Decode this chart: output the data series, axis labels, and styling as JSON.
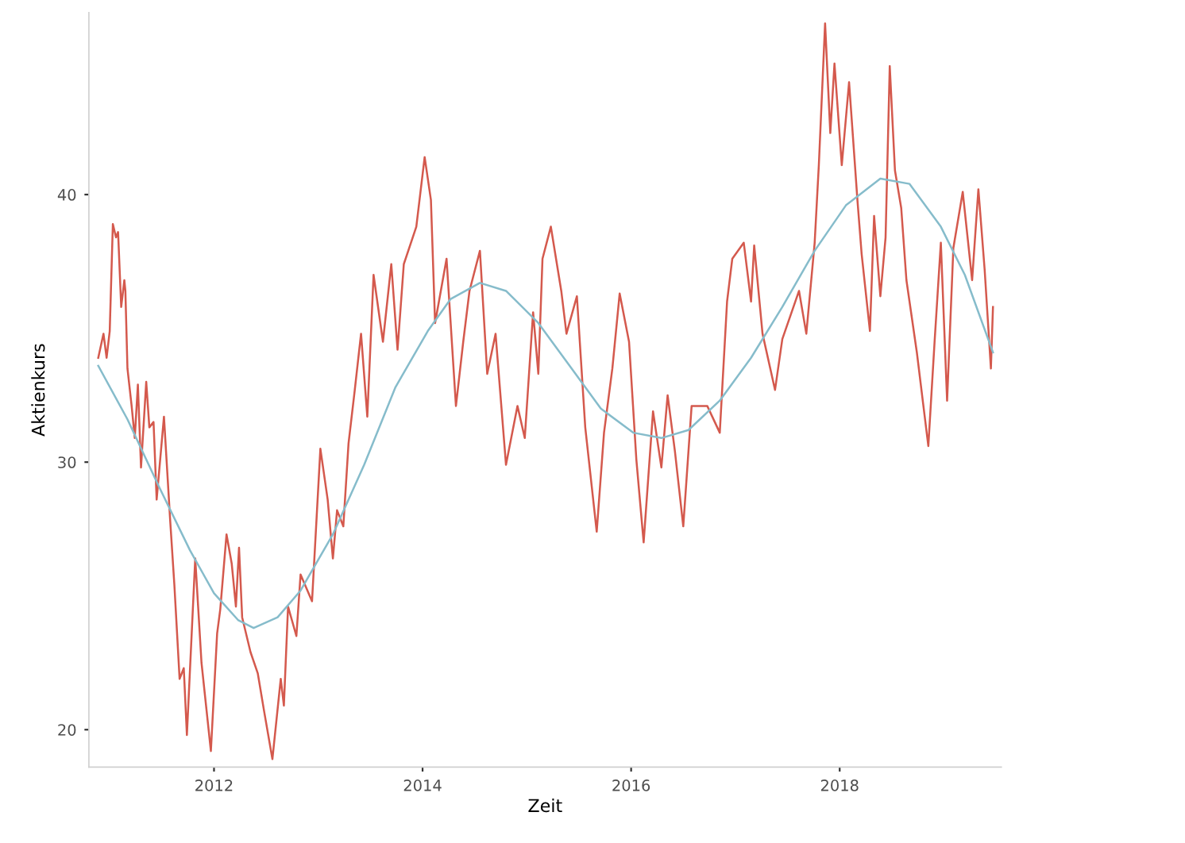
{
  "chart_data": {
    "type": "line",
    "xlabel": "Zeit",
    "ylabel": "Aktienkurs",
    "xlim": [
      2010.8,
      2019.55
    ],
    "xticks": [
      2012,
      2014,
      2016,
      2018
    ],
    "ylim": [
      18.6,
      46.8
    ],
    "yticks": [
      20,
      30,
      40
    ],
    "grid": false,
    "series": [
      {
        "color": "#d4594d",
        "x": [
          2010.89,
          2010.94,
          2010.97,
          2011.0,
          2011.03,
          2011.06,
          2011.08,
          2011.11,
          2011.14,
          2011.15,
          2011.17,
          2011.21,
          2011.24,
          2011.27,
          2011.3,
          2011.35,
          2011.38,
          2011.42,
          2011.45,
          2011.52,
          2011.58,
          2011.62,
          2011.67,
          2011.71,
          2011.74,
          2011.82,
          2011.88,
          2011.97,
          2012.03,
          2012.06,
          2012.12,
          2012.17,
          2012.21,
          2012.24,
          2012.27,
          2012.35,
          2012.42,
          2012.48,
          2012.56,
          2012.64,
          2012.67,
          2012.71,
          2012.79,
          2012.83,
          2012.94,
          2013.02,
          2013.09,
          2013.14,
          2013.18,
          2013.24,
          2013.29,
          2013.35,
          2013.41,
          2013.47,
          2013.53,
          2013.62,
          2013.7,
          2013.76,
          2013.82,
          2013.94,
          2014.02,
          2014.08,
          2014.12,
          2014.23,
          2014.32,
          2014.39,
          2014.45,
          2014.55,
          2014.62,
          2014.7,
          2014.8,
          2014.91,
          2014.98,
          2015.06,
          2015.11,
          2015.15,
          2015.23,
          2015.33,
          2015.38,
          2015.48,
          2015.56,
          2015.67,
          2015.74,
          2015.82,
          2015.89,
          2015.98,
          2016.05,
          2016.12,
          2016.21,
          2016.29,
          2016.35,
          2016.42,
          2016.5,
          2016.58,
          2016.73,
          2016.85,
          2016.92,
          2016.97,
          2017.08,
          2017.15,
          2017.18,
          2017.26,
          2017.38,
          2017.45,
          2017.61,
          2017.68,
          2017.76,
          2017.8,
          2017.86,
          2017.91,
          2017.95,
          2018.02,
          2018.09,
          2018.17,
          2018.21,
          2018.29,
          2018.33,
          2018.39,
          2018.44,
          2018.48,
          2018.53,
          2018.59,
          2018.64,
          2018.74,
          2018.85,
          2018.91,
          2018.97,
          2019.03,
          2019.09,
          2019.18,
          2019.27,
          2019.33,
          2019.39,
          2019.45,
          2019.47
        ],
        "values": [
          33.9,
          34.8,
          33.9,
          34.9,
          38.9,
          38.4,
          38.6,
          35.8,
          36.8,
          36.4,
          33.5,
          32.1,
          30.9,
          32.9,
          29.8,
          33.0,
          31.3,
          31.5,
          28.6,
          31.7,
          27.8,
          25.4,
          21.9,
          22.3,
          19.8,
          26.4,
          22.5,
          19.2,
          23.6,
          24.5,
          27.3,
          26.2,
          24.6,
          26.8,
          24.2,
          22.9,
          22.1,
          20.7,
          18.9,
          21.9,
          20.9,
          24.6,
          23.5,
          25.8,
          24.8,
          30.5,
          28.6,
          26.4,
          28.2,
          27.6,
          30.7,
          32.7,
          34.8,
          31.7,
          37.0,
          34.5,
          37.4,
          34.2,
          37.4,
          38.8,
          41.4,
          39.8,
          35.2,
          37.6,
          32.1,
          34.5,
          36.4,
          37.9,
          33.3,
          34.8,
          29.9,
          32.1,
          30.9,
          35.6,
          33.3,
          37.6,
          38.8,
          36.4,
          34.8,
          36.2,
          31.3,
          27.4,
          31.1,
          33.5,
          36.3,
          34.5,
          30.1,
          27.0,
          31.9,
          29.8,
          32.5,
          30.4,
          27.6,
          32.1,
          32.1,
          31.1,
          36.0,
          37.6,
          38.2,
          36.0,
          38.1,
          34.8,
          32.7,
          34.6,
          36.4,
          34.8,
          38.2,
          41.1,
          46.4,
          42.3,
          44.9,
          41.1,
          44.2,
          39.8,
          37.8,
          34.9,
          39.2,
          36.2,
          38.4,
          44.8,
          40.9,
          39.5,
          36.8,
          34.1,
          30.6,
          34.5,
          38.2,
          32.3,
          38.0,
          40.1,
          36.8,
          40.2,
          37.2,
          33.5,
          35.8
        ]
      },
      {
        "color": "#86bccb",
        "x": [
          2010.89,
          2011.17,
          2011.47,
          2011.77,
          2012.0,
          2012.23,
          2012.38,
          2012.61,
          2012.83,
          2013.14,
          2013.44,
          2013.74,
          2014.05,
          2014.27,
          2014.55,
          2014.8,
          2015.11,
          2015.41,
          2015.71,
          2016.02,
          2016.29,
          2016.55,
          2016.85,
          2017.15,
          2017.45,
          2017.76,
          2018.06,
          2018.39,
          2018.67,
          2018.97,
          2019.2,
          2019.47
        ],
        "values": [
          33.6,
          31.6,
          29.1,
          26.7,
          25.1,
          24.1,
          23.8,
          24.2,
          25.2,
          27.3,
          29.9,
          32.8,
          34.9,
          36.1,
          36.7,
          36.4,
          35.2,
          33.6,
          32.0,
          31.1,
          30.9,
          31.2,
          32.3,
          33.9,
          35.8,
          37.9,
          39.6,
          40.6,
          40.4,
          38.8,
          37.0,
          34.1
        ]
      }
    ]
  }
}
